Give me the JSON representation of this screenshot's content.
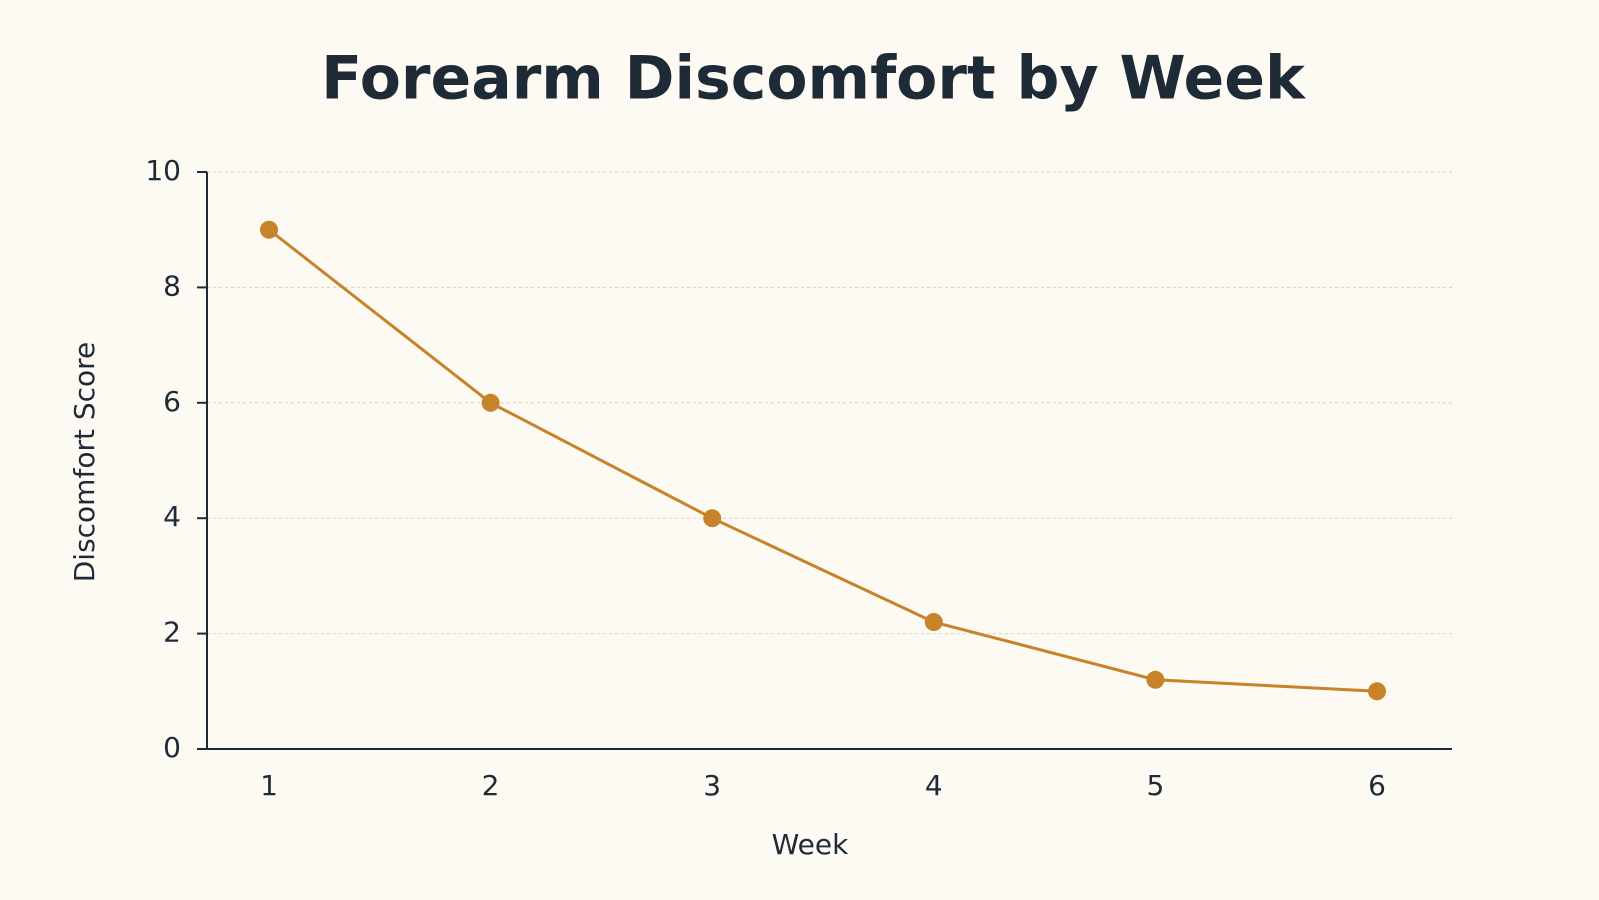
{
  "chart_data": {
    "type": "line",
    "title": "Forearm Discomfort by Week",
    "x_label": "Week",
    "y_label": "Discomfort Score",
    "categories": [
      "1",
      "2",
      "3",
      "4",
      "5",
      "6"
    ],
    "series": [
      {
        "name": "Discomfort Score",
        "color": "#c7832a",
        "values": [
          9,
          6,
          4,
          2.2,
          1.2,
          1.0
        ]
      }
    ],
    "ylim": [
      0,
      10
    ],
    "yticks": [
      0,
      2,
      4,
      6,
      8,
      10
    ],
    "grid": true
  }
}
